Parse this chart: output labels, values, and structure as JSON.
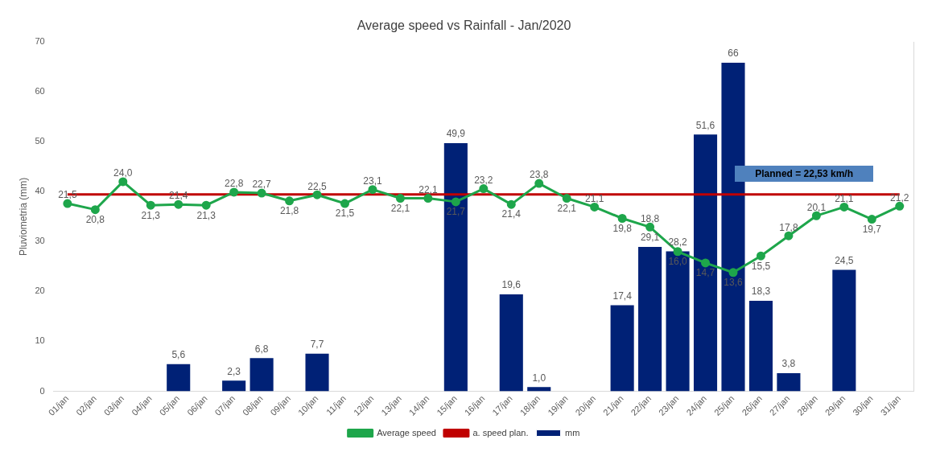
{
  "chart_data": {
    "type": "bar",
    "title": "Average speed vs Rainfall - Jan/2020",
    "ylabel": "Pluviometria (mm)",
    "categories": [
      "01/jan",
      "02/jan",
      "03/jan",
      "04/jan",
      "05/jan",
      "06/jan",
      "07/jan",
      "08/jan",
      "09/jan",
      "10/jan",
      "11/jan",
      "12/jan",
      "13/jan",
      "14/jan",
      "15/jan",
      "16/jan",
      "17/jan",
      "18/jan",
      "19/jan",
      "20/jan",
      "21/jan",
      "22/jan",
      "23/jan",
      "24/jan",
      "25/jan",
      "26/jan",
      "27/jan",
      "28/jan",
      "29/jan",
      "30/jan",
      "31/jan"
    ],
    "series": [
      {
        "name": "mm",
        "color": "#002176",
        "values": [
          0,
          0,
          0,
          0,
          5.6,
          0,
          2.3,
          6.8,
          0,
          7.7,
          0,
          0,
          0,
          0,
          49.9,
          0,
          19.6,
          1.0,
          0,
          0,
          17.4,
          29.1,
          28.2,
          51.6,
          66,
          18.3,
          3.8,
          0,
          24.5,
          0,
          0
        ],
        "value_labels": [
          null,
          null,
          null,
          null,
          "5,6",
          null,
          "2,3",
          "6,8",
          null,
          "7,7",
          null,
          null,
          null,
          null,
          "49,9",
          null,
          "19,6",
          "1,0",
          null,
          null,
          "17,4",
          "29,1",
          "28,2",
          "51,6",
          "66",
          "18,3",
          "3,8",
          null,
          "24,5",
          null,
          null
        ]
      },
      {
        "name": "Average speed",
        "type": "line",
        "axis": "y2",
        "color": "#1ea64b",
        "marker": "circle",
        "values": [
          21.5,
          20.8,
          24.0,
          21.3,
          21.4,
          21.3,
          22.8,
          22.7,
          21.8,
          22.5,
          21.5,
          23.1,
          22.1,
          22.1,
          21.7,
          23.2,
          21.4,
          23.8,
          22.1,
          21.1,
          19.8,
          18.8,
          16.0,
          14.7,
          13.6,
          15.5,
          17.8,
          20.1,
          21.1,
          19.7,
          21.2
        ],
        "value_labels": [
          "21,5",
          "20,8",
          "24,0",
          "21,3",
          "21,4",
          "21,3",
          "22,8",
          "22,7",
          "21,8",
          "22,5",
          "21,5",
          "23,1",
          "22,1",
          "22,1",
          "21,7",
          "23,2",
          "21,4",
          "23,8",
          "22,1",
          "21,1",
          "19,8",
          "18,8",
          "16,0",
          "14,7",
          "13,6",
          "15,5",
          "17,8",
          "20,1",
          "21,1",
          "19,7",
          "21,2"
        ]
      },
      {
        "name": "a. speed plan.",
        "type": "line",
        "axis": "y2",
        "color": "#c00000",
        "marker": "none",
        "values": [
          22.53,
          22.53,
          22.53,
          22.53,
          22.53,
          22.53,
          22.53,
          22.53,
          22.53,
          22.53,
          22.53,
          22.53,
          22.53,
          22.53,
          22.53,
          22.53,
          22.53,
          22.53,
          22.53,
          22.53,
          22.53,
          22.53,
          22.53,
          22.53,
          22.53,
          22.53,
          22.53,
          22.53,
          22.53,
          22.53,
          22.53
        ]
      }
    ],
    "ylim": [
      0,
      70
    ],
    "yticks": [
      0,
      10,
      20,
      30,
      40,
      50,
      60,
      70
    ],
    "y2lim": [
      0,
      40
    ],
    "annotations": [
      "Planned = 22,53 km/h"
    ],
    "grid": false,
    "legend": "bottom"
  }
}
